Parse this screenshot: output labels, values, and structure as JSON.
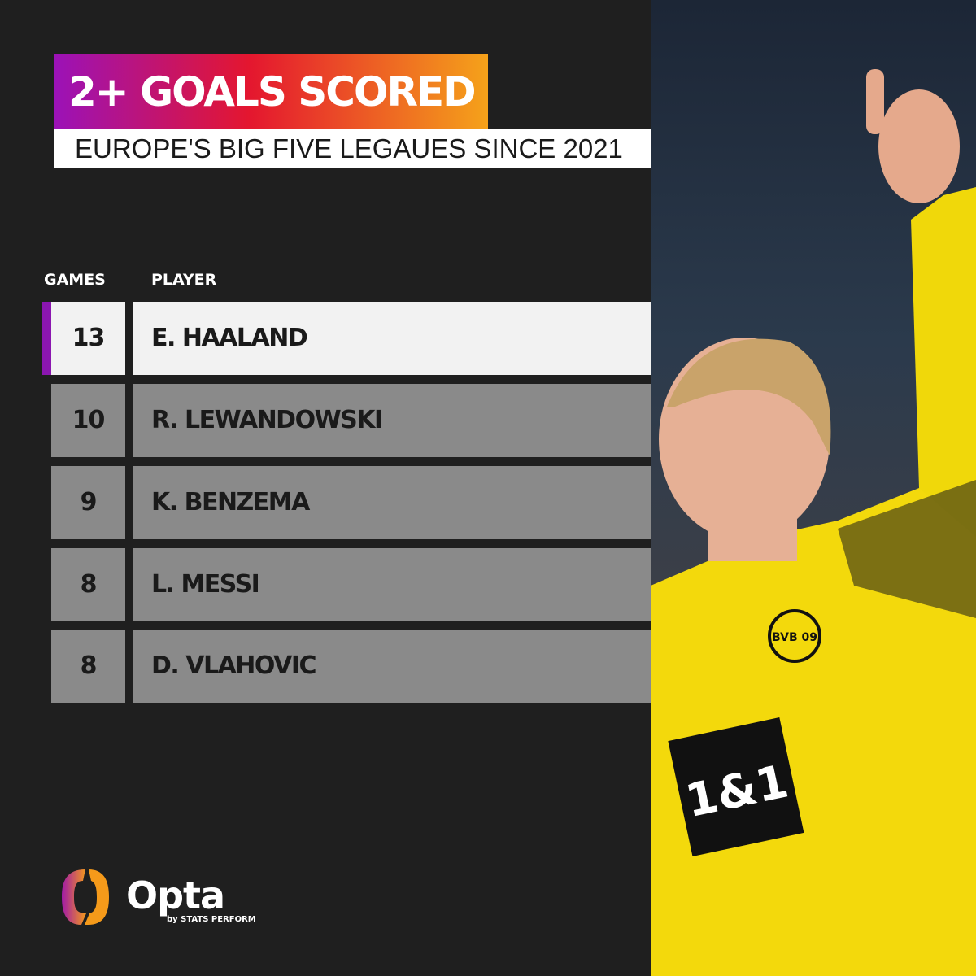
{
  "header": {
    "title": "2+ GOALS SCORED",
    "subtitle": "EUROPE'S  BIG FIVE LEGAUES SINCE 2021"
  },
  "chart_data": {
    "type": "table",
    "columns": [
      "GAMES",
      "PLAYER"
    ],
    "rows": [
      {
        "games": "13",
        "player": "E. HAALAND",
        "highlighted": true
      },
      {
        "games": "10",
        "player": "R. LEWANDOWSKI"
      },
      {
        "games": "9",
        "player": "K. BENZEMA"
      },
      {
        "games": "8",
        "player": "L. MESSI"
      },
      {
        "games": "8",
        "player": "D. VLAHOVIC"
      }
    ]
  },
  "branding": {
    "logo": "Opta",
    "tagline": "by STATS PERFORM",
    "shirt_sponsor": "1&1",
    "club_badge": "BVB 09"
  },
  "colors": {
    "gradient_start": "#9b12b8",
    "gradient_mid": "#e4162f",
    "gradient_end": "#f5a21a",
    "accent": "#8b16b0",
    "row_bg": "#8a8a8a",
    "highlight_bg": "#f2f2f2",
    "background": "#1f1f1f"
  }
}
